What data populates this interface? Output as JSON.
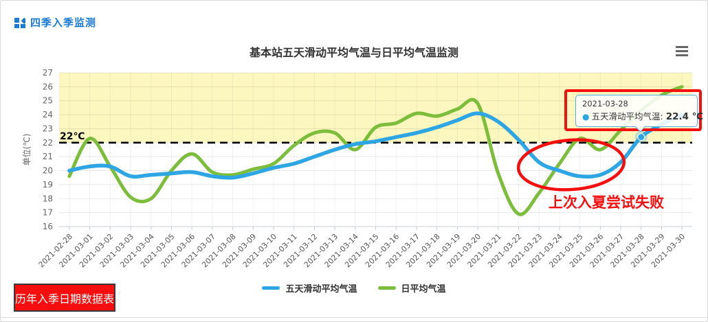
{
  "header": {
    "title": "四季入季监测"
  },
  "toolbar": {
    "menu_icon": "hamburger-menu"
  },
  "chart_data": {
    "type": "line",
    "title": "基本站五天滑动平均气温与日平均气温监测",
    "ylabel": "单位(℃)",
    "ylim": [
      16,
      27
    ],
    "yticks": [
      16,
      17,
      18,
      19,
      20,
      21,
      22,
      23,
      24,
      25,
      26,
      27
    ],
    "grid": true,
    "legend_position": "bottom",
    "categories": [
      "2021-02-28",
      "2021-03-01",
      "2021-03-02",
      "2021-03-03",
      "2021-03-04",
      "2021-03-05",
      "2021-03-06",
      "2021-03-07",
      "2021-03-08",
      "2021-03-09",
      "2021-03-10",
      "2021-03-11",
      "2021-03-12",
      "2021-03-13",
      "2021-03-14",
      "2021-03-15",
      "2021-03-16",
      "2021-03-17",
      "2021-03-18",
      "2021-03-19",
      "2021-03-20",
      "2021-03-21",
      "2021-03-22",
      "2021-03-23",
      "2021-03-24",
      "2021-03-25",
      "2021-03-26",
      "2021-03-27",
      "2021-03-28",
      "2021-03-29",
      "2021-03-30"
    ],
    "series": [
      {
        "name": "五天滑动平均气温",
        "color": "#2ea6e4",
        "values": [
          20.0,
          20.3,
          20.3,
          19.6,
          19.7,
          19.8,
          19.9,
          19.6,
          19.5,
          19.8,
          20.2,
          20.5,
          21.0,
          21.5,
          21.9,
          22.1,
          22.4,
          22.7,
          23.1,
          23.6,
          24.1,
          23.5,
          22.2,
          20.6,
          20.0,
          19.6,
          19.7,
          20.6,
          22.4,
          23.3,
          24.0
        ]
      },
      {
        "name": "日平均气温",
        "color": "#7cbd3b",
        "values": [
          19.6,
          22.3,
          20.3,
          18.1,
          18.0,
          20.0,
          21.2,
          19.9,
          19.7,
          20.1,
          20.5,
          21.8,
          22.7,
          22.7,
          21.5,
          23.1,
          23.4,
          24.1,
          23.9,
          24.4,
          24.8,
          19.8,
          16.9,
          18.4,
          20.5,
          22.3,
          21.5,
          22.9,
          24.3,
          25.4,
          26.0
        ]
      }
    ],
    "threshold": {
      "value": 22,
      "label": "22℃"
    },
    "plot_band": {
      "from": 22,
      "to": 27,
      "color": "#fcf7be"
    }
  },
  "tooltip": {
    "date": "2021-03-28",
    "series_label": "五天滑动平均气温:",
    "value": "22.4 ℃",
    "bullet": "●",
    "point_index": 28
  },
  "annotations": {
    "failed_attempt": "上次入夏尝试失败"
  },
  "footer_button": {
    "label": "历年入季日期数据表"
  },
  "colors": {
    "accent_blue": "#1c7cd4",
    "line_blue": "#2ea6e4",
    "line_green": "#7cbd3b",
    "band_yellow": "#fcf7be",
    "annotation_red": "#f40f0f",
    "axis_text": "#666666"
  }
}
